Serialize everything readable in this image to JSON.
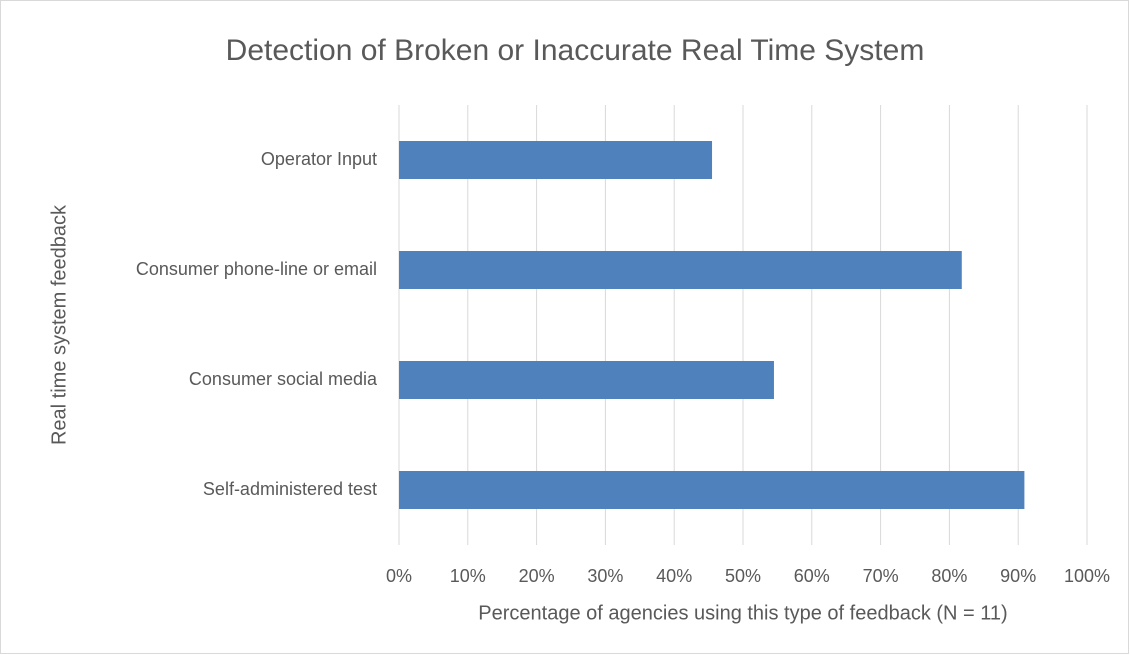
{
  "chart_data": {
    "type": "bar",
    "orientation": "horizontal",
    "title": "Detection of Broken or Inaccurate Real Time System",
    "x_label": "Percentage of agencies using this type of feedback (N = 11)",
    "y_label": "Real time system feedback",
    "categories": [
      "Operator Input",
      "Consumer phone-line or email",
      "Consumer social media",
      "Self-administered test"
    ],
    "values": [
      45.5,
      81.8,
      54.5,
      90.9
    ],
    "color": "#4f81bd",
    "xlim": [
      0,
      100
    ],
    "xticks": [
      {
        "value": 0,
        "label": "0%"
      },
      {
        "value": 10,
        "label": "10%"
      },
      {
        "value": 20,
        "label": "20%"
      },
      {
        "value": 30,
        "label": "30%"
      },
      {
        "value": 40,
        "label": "40%"
      },
      {
        "value": 50,
        "label": "50%"
      },
      {
        "value": 60,
        "label": "60%"
      },
      {
        "value": 70,
        "label": "70%"
      },
      {
        "value": 80,
        "label": "80%"
      },
      {
        "value": 90,
        "label": "90%"
      },
      {
        "value": 100,
        "label": "100%"
      }
    ],
    "grid": true
  }
}
